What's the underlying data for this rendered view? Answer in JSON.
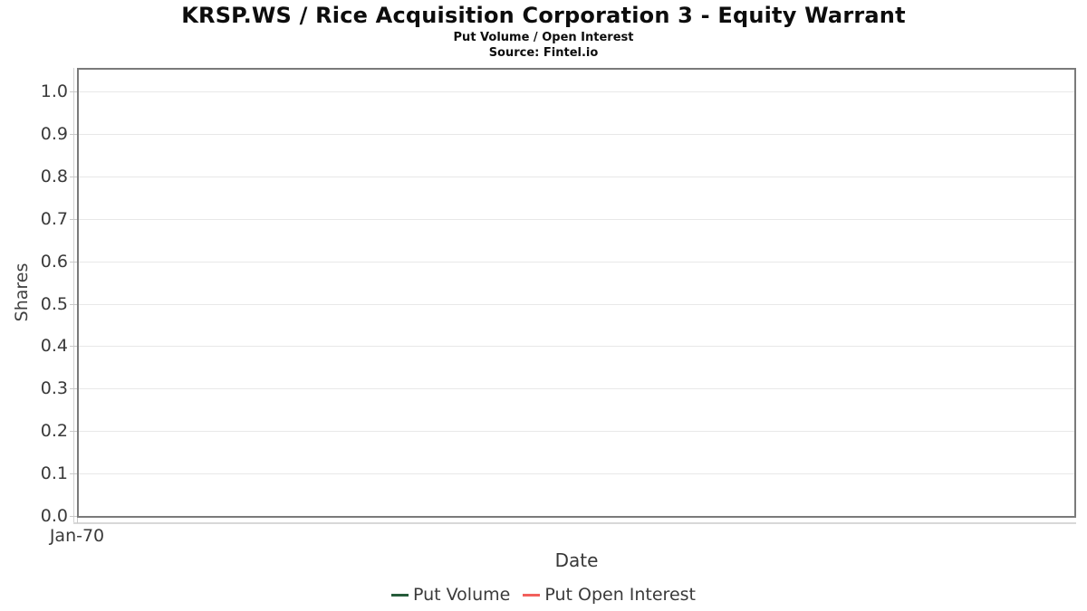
{
  "header": {
    "title": "KRSP.WS / Rice Acquisition Corporation 3 - Equity Warrant",
    "subtitle": "Put Volume / Open Interest",
    "source": "Source: Fintel.io"
  },
  "chart_data": {
    "type": "line",
    "title": "KRSP.WS / Rice Acquisition Corporation 3 - Equity Warrant",
    "subtitle": "Put Volume / Open Interest",
    "source": "Source: Fintel.io",
    "xlabel": "Date",
    "ylabel": "Shares",
    "ylim": [
      0.0,
      1.0
    ],
    "yticks": [
      0.0,
      0.1,
      0.2,
      0.3,
      0.4,
      0.5,
      0.6,
      0.7,
      0.8,
      0.9,
      1.0
    ],
    "xticks": [
      "Jan-70"
    ],
    "grid": "horizontal",
    "legend_position": "bottom",
    "series": [
      {
        "name": "Put Volume",
        "color": "#265c3b",
        "x": [],
        "values": []
      },
      {
        "name": "Put Open Interest",
        "color": "#f2605c",
        "x": [],
        "values": []
      }
    ]
  }
}
